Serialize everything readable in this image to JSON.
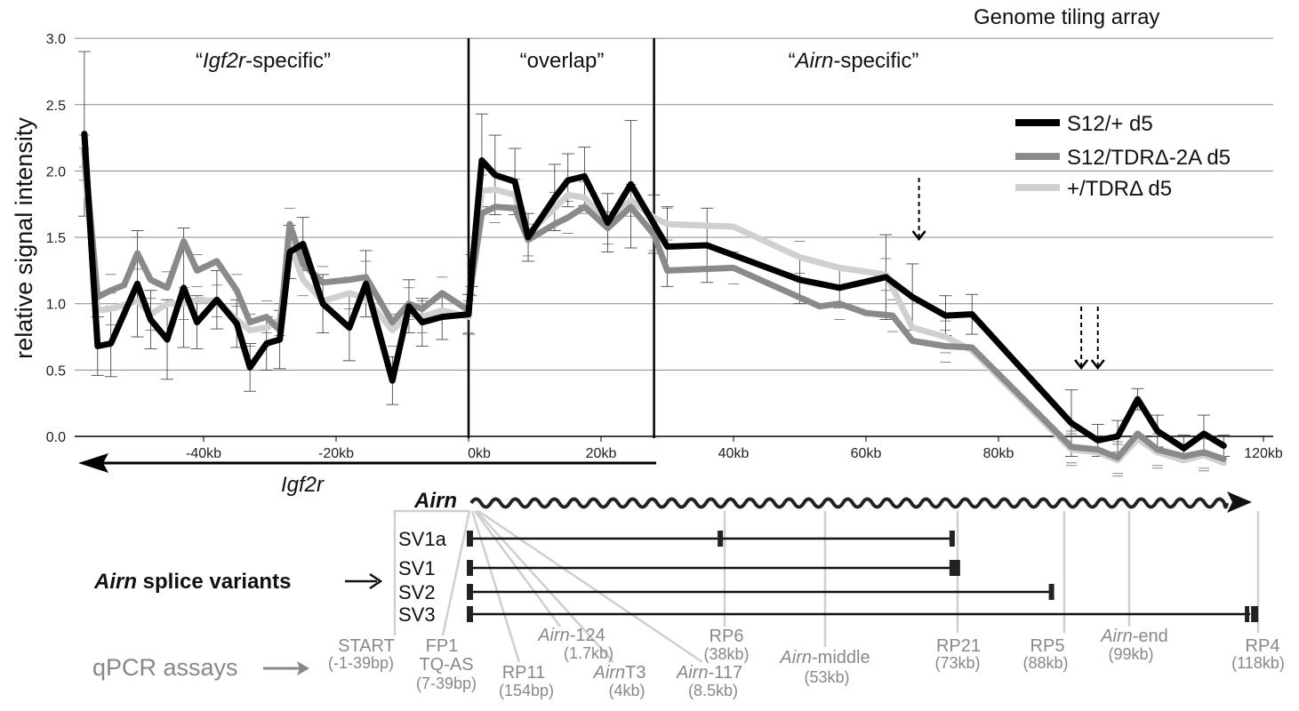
{
  "chart_data": {
    "type": "line",
    "title": "Genome tiling array",
    "ylabel": "relative signal intensity",
    "xlabel": "",
    "ylim": [
      0,
      3.0
    ],
    "xlim": [
      -58,
      123
    ],
    "y_ticks": [
      "0.0",
      "0.5",
      "1.0",
      "1.5",
      "2.0",
      "2.5",
      "3.0"
    ],
    "x_ticks": [
      {
        "v": -40,
        "label": "-40kb"
      },
      {
        "v": -20,
        "label": "-20kb"
      },
      {
        "v": 0,
        "label": "0kb"
      },
      {
        "v": 20,
        "label": "20kb"
      },
      {
        "v": 40,
        "label": "40kb"
      },
      {
        "v": 60,
        "label": "60kb"
      },
      {
        "v": 80,
        "label": "80kb"
      },
      {
        "v": 120,
        "label": "120kb"
      }
    ],
    "regions": {
      "igf2r_specific": {
        "pre": "“",
        "italic": "Igf2r",
        "post": "-specific”"
      },
      "overlap": "“overlap”",
      "airn_specific": {
        "pre": "“",
        "italic": "Airn",
        "post": "-specific”"
      }
    },
    "dividers": [
      0,
      28
    ],
    "legend_position": "top-right",
    "series": [
      {
        "name": "S12/+ d5",
        "color": "#000000",
        "points": [
          [
            -58,
            2.28
          ],
          [
            -56,
            0.68
          ],
          [
            -54,
            0.7
          ],
          [
            -50,
            1.15
          ],
          [
            -48,
            0.88
          ],
          [
            -45.5,
            0.73
          ],
          [
            -43,
            1.12
          ],
          [
            -41,
            0.86
          ],
          [
            -38,
            1.03
          ],
          [
            -35,
            0.85
          ],
          [
            -33,
            0.52
          ],
          [
            -30.5,
            0.7
          ],
          [
            -28.5,
            0.73
          ],
          [
            -27,
            1.39
          ],
          [
            -25,
            1.45
          ],
          [
            -22,
            1.0
          ],
          [
            -18,
            0.82
          ],
          [
            -15.5,
            1.15
          ],
          [
            -11.5,
            0.42
          ],
          [
            -9,
            0.98
          ],
          [
            -7,
            0.86
          ],
          [
            -4,
            0.9
          ],
          [
            0,
            0.92
          ],
          [
            0.5,
            1.25
          ],
          [
            2,
            2.08
          ],
          [
            4,
            1.97
          ],
          [
            7,
            1.92
          ],
          [
            9,
            1.5
          ],
          [
            13,
            1.8
          ],
          [
            15,
            1.93
          ],
          [
            17.5,
            1.96
          ],
          [
            21,
            1.61
          ],
          [
            24.5,
            1.9
          ],
          [
            28,
            1.6
          ],
          [
            30,
            1.43
          ],
          [
            36,
            1.44
          ],
          [
            50,
            1.18
          ],
          [
            56,
            1.12
          ],
          [
            63,
            1.2
          ],
          [
            67,
            1.05
          ],
          [
            72,
            0.91
          ],
          [
            76,
            0.92
          ],
          [
            91,
            0.1
          ],
          [
            95,
            -0.03
          ],
          [
            98,
            0.0
          ],
          [
            101,
            0.28
          ],
          [
            104,
            0.04
          ],
          [
            108,
            -0.09
          ],
          [
            111,
            0.02
          ],
          [
            114,
            -0.07
          ]
        ],
        "errors": [
          0.62,
          0.22,
          0.25,
          0.4,
          0.22,
          0.3,
          0.45,
          0.2,
          0.22,
          0.18,
          0.18,
          0.2,
          0.22,
          0.2,
          0.2,
          0.22,
          0.25,
          0.25,
          0.18,
          0.2,
          0.18,
          0.17,
          0.15,
          0.12,
          0.35,
          0.3,
          0.25,
          0.18,
          0.25,
          0.2,
          0.22,
          0.22,
          0.48,
          0.22,
          0.3,
          0.28,
          0.18,
          0.15,
          0.32,
          0.25,
          0.15,
          0.15,
          0.25,
          0.12,
          0.12,
          0.08,
          0.12,
          0.1,
          0.14,
          0.08
        ]
      },
      {
        "name": "S12/TDRΔ-2A d5",
        "color": "#8a8a8a",
        "points": [
          [
            -58,
            2.15
          ],
          [
            -56,
            1.05
          ],
          [
            -54,
            1.1
          ],
          [
            -52,
            1.14
          ],
          [
            -50,
            1.38
          ],
          [
            -48,
            1.18
          ],
          [
            -45.5,
            1.12
          ],
          [
            -43,
            1.47
          ],
          [
            -41,
            1.25
          ],
          [
            -38,
            1.32
          ],
          [
            -35,
            1.1
          ],
          [
            -33,
            0.86
          ],
          [
            -30.5,
            0.9
          ],
          [
            -28.5,
            0.8
          ],
          [
            -27,
            1.6
          ],
          [
            -25,
            1.3
          ],
          [
            -22,
            1.16
          ],
          [
            -18,
            1.18
          ],
          [
            -15.5,
            1.2
          ],
          [
            -11.5,
            0.86
          ],
          [
            -9,
            1.0
          ],
          [
            -7,
            0.96
          ],
          [
            -4,
            1.08
          ],
          [
            0,
            0.95
          ],
          [
            0.5,
            1.18
          ],
          [
            2,
            1.68
          ],
          [
            4,
            1.73
          ],
          [
            7,
            1.72
          ],
          [
            9,
            1.48
          ],
          [
            13,
            1.6
          ],
          [
            15,
            1.65
          ],
          [
            17.5,
            1.73
          ],
          [
            21,
            1.57
          ],
          [
            24.5,
            1.73
          ],
          [
            28,
            1.52
          ],
          [
            30,
            1.25
          ],
          [
            40,
            1.27
          ],
          [
            53,
            0.98
          ],
          [
            56,
            1.0
          ],
          [
            60,
            0.93
          ],
          [
            64,
            0.91
          ],
          [
            67,
            0.72
          ],
          [
            72,
            0.68
          ],
          [
            76,
            0.67
          ],
          [
            91,
            -0.08
          ],
          [
            95,
            -0.1
          ],
          [
            98,
            -0.16
          ],
          [
            101,
            0.02
          ],
          [
            104,
            -0.1
          ],
          [
            108,
            -0.15
          ],
          [
            111,
            -0.12
          ],
          [
            114,
            -0.17
          ]
        ]
      },
      {
        "name": "+/TDRΔ d5",
        "color": "#d0d0d0",
        "points": [
          [
            -58,
            2.05
          ],
          [
            -56,
            0.95
          ],
          [
            -54,
            0.96
          ],
          [
            -50,
            1.02
          ],
          [
            -48,
            0.92
          ],
          [
            -45.5,
            1.0
          ],
          [
            -43,
            1.0
          ],
          [
            -41,
            1.03
          ],
          [
            -38,
            1.02
          ],
          [
            -35,
            0.88
          ],
          [
            -33,
            0.8
          ],
          [
            -30.5,
            0.82
          ],
          [
            -28.5,
            0.88
          ],
          [
            -27,
            1.45
          ],
          [
            -25,
            1.18
          ],
          [
            -22,
            1.02
          ],
          [
            -18,
            1.08
          ],
          [
            -15.5,
            1.04
          ],
          [
            -11.5,
            0.8
          ],
          [
            -9,
            0.92
          ],
          [
            -7,
            0.9
          ],
          [
            -4,
            0.95
          ],
          [
            0,
            0.9
          ],
          [
            0.5,
            1.25
          ],
          [
            2,
            1.85
          ],
          [
            4,
            1.86
          ],
          [
            7,
            1.82
          ],
          [
            9,
            1.53
          ],
          [
            13,
            1.72
          ],
          [
            15,
            1.82
          ],
          [
            17.5,
            1.8
          ],
          [
            21,
            1.62
          ],
          [
            24.5,
            1.78
          ],
          [
            28,
            1.65
          ],
          [
            30,
            1.6
          ],
          [
            40,
            1.58
          ],
          [
            50,
            1.35
          ],
          [
            56,
            1.27
          ],
          [
            63,
            1.22
          ],
          [
            67,
            0.82
          ],
          [
            72,
            0.75
          ],
          [
            76,
            0.65
          ],
          [
            91,
            -0.1
          ],
          [
            95,
            -0.12
          ],
          [
            98,
            -0.18
          ],
          [
            101,
            -0.02
          ],
          [
            104,
            -0.12
          ],
          [
            108,
            -0.18
          ],
          [
            111,
            -0.14
          ],
          [
            114,
            -0.2
          ]
        ]
      }
    ],
    "arrows_kb": [
      68,
      92.5,
      95
    ]
  },
  "genes": {
    "igf2r": "Igf2r",
    "airn": "Airn"
  },
  "splice_label": {
    "bold_italic": "Airn",
    "rest": " splice variants"
  },
  "splice_variants": [
    {
      "name": "SV1a",
      "end": 73,
      "exon2": 38
    },
    {
      "name": "SV1",
      "end": 73
    },
    {
      "name": "SV2",
      "end": 88
    },
    {
      "name": "SV3",
      "end": 118
    }
  ],
  "qpcr_label": "qPCR assays",
  "qpcr": {
    "start": [
      "START",
      "(-1-39bp)"
    ],
    "fp1": [
      "FP1",
      "TQ-AS",
      "(7-39bp)"
    ],
    "rp11": [
      "RP11",
      "(154bp)"
    ],
    "a124": [
      "-124",
      "(1.7kb)"
    ],
    "at3": [
      "T3",
      "(4kb)"
    ],
    "a117": [
      "-117",
      "(8.5kb)"
    ],
    "rp6": [
      "RP6",
      "(38kb)"
    ],
    "amiddle": [
      "-middle",
      "(53kb)"
    ],
    "rp21": [
      "RP21",
      "(73kb)"
    ],
    "rp5": [
      "RP5",
      "(88kb)"
    ],
    "aend": [
      "-end",
      "(99kb)"
    ],
    "rp4": [
      "RP4",
      "(118kb)"
    ]
  },
  "colors": {
    "grid": "#888888",
    "axis": "#000000",
    "guide": "#cccccc",
    "qpcr_text": "#888888"
  }
}
